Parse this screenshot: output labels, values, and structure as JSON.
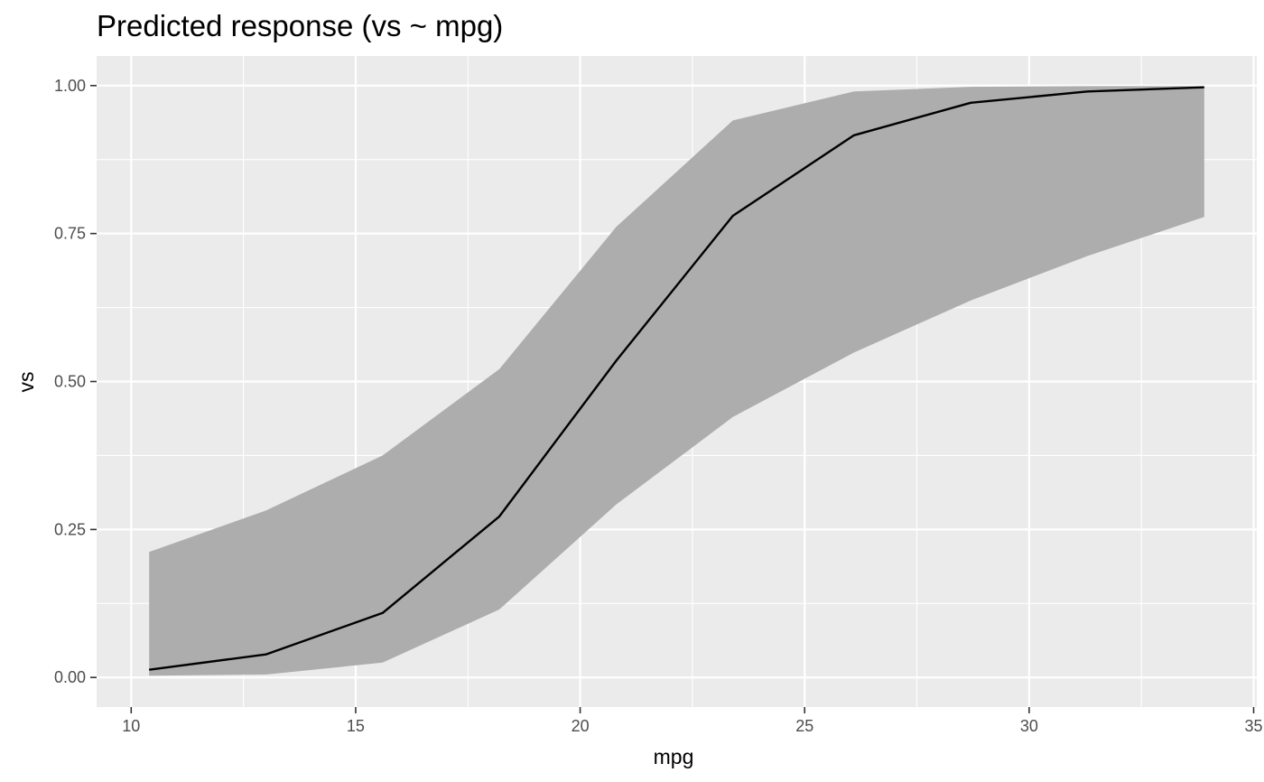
{
  "chart_data": {
    "type": "line",
    "title": "Predicted response (vs ~ mpg)",
    "xlabel": "mpg",
    "ylabel": "vs",
    "xlim": [
      9.23,
      35.07
    ],
    "ylim": [
      -0.05,
      1.05
    ],
    "x_ticks": [
      10,
      15,
      20,
      25,
      30,
      35
    ],
    "x_tick_labels": [
      "10",
      "15",
      "20",
      "25",
      "30",
      "35"
    ],
    "y_ticks": [
      0,
      0.25,
      0.5,
      0.75,
      1.0
    ],
    "y_tick_labels": [
      "0.00",
      "0.25",
      "0.50",
      "0.75",
      "1.00"
    ],
    "x_minor_ticks": [
      12.5,
      17.5,
      22.5,
      27.5,
      32.5
    ],
    "y_minor_ticks": [
      0.125,
      0.375,
      0.625,
      0.875
    ],
    "grid": true,
    "colors": {
      "panel": "#ebebeb",
      "grid": "#ffffff",
      "ribbon": "#adadad",
      "line": "#000000"
    },
    "series": [
      {
        "x": [
          10.4,
          13.0,
          15.6,
          18.2,
          20.8,
          23.4,
          26.1,
          28.7,
          31.3,
          33.9
        ],
        "values": [
          0.013,
          0.039,
          0.109,
          0.272,
          0.535,
          0.78,
          0.916,
          0.971,
          0.99,
          0.997
        ],
        "lower": [
          0.003,
          0.005,
          0.025,
          0.115,
          0.292,
          0.44,
          0.549,
          0.637,
          0.712,
          0.778
        ],
        "upper": [
          0.212,
          0.282,
          0.375,
          0.521,
          0.761,
          0.941,
          0.99,
          0.998,
          0.999,
          0.999
        ]
      }
    ]
  }
}
